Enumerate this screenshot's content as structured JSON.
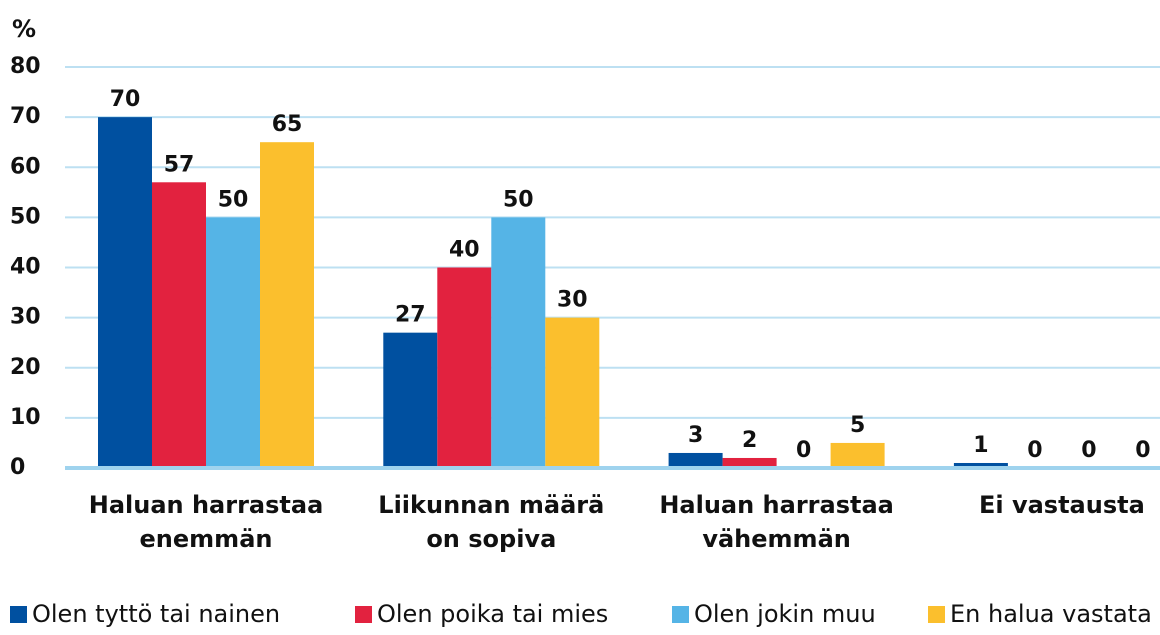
{
  "chart_data": {
    "type": "bar",
    "y_label": "%",
    "categories": [
      "Haluan harrastaa\nenemmän",
      "Liikunnan määrä\non sopiva",
      "Haluan harrastaa\nvähemmän",
      "Ei vastausta"
    ],
    "series": [
      {
        "name": "Olen tyttö tai nainen",
        "color": "#0050a0",
        "values": [
          70,
          27,
          3,
          1
        ]
      },
      {
        "name": "Olen poika tai mies",
        "color": "#e2223f",
        "values": [
          57,
          40,
          2,
          0
        ]
      },
      {
        "name": "Olen jokin muu",
        "color": "#55b4e6",
        "values": [
          50,
          50,
          0,
          0
        ]
      },
      {
        "name": "En halua vastata",
        "color": "#fbbf2d",
        "values": [
          65,
          30,
          5,
          0
        ]
      }
    ],
    "ylim": [
      0,
      80
    ],
    "yticks": [
      0,
      10,
      20,
      30,
      40,
      50,
      60,
      70,
      80
    ],
    "grid": true,
    "legend": "bottom"
  }
}
